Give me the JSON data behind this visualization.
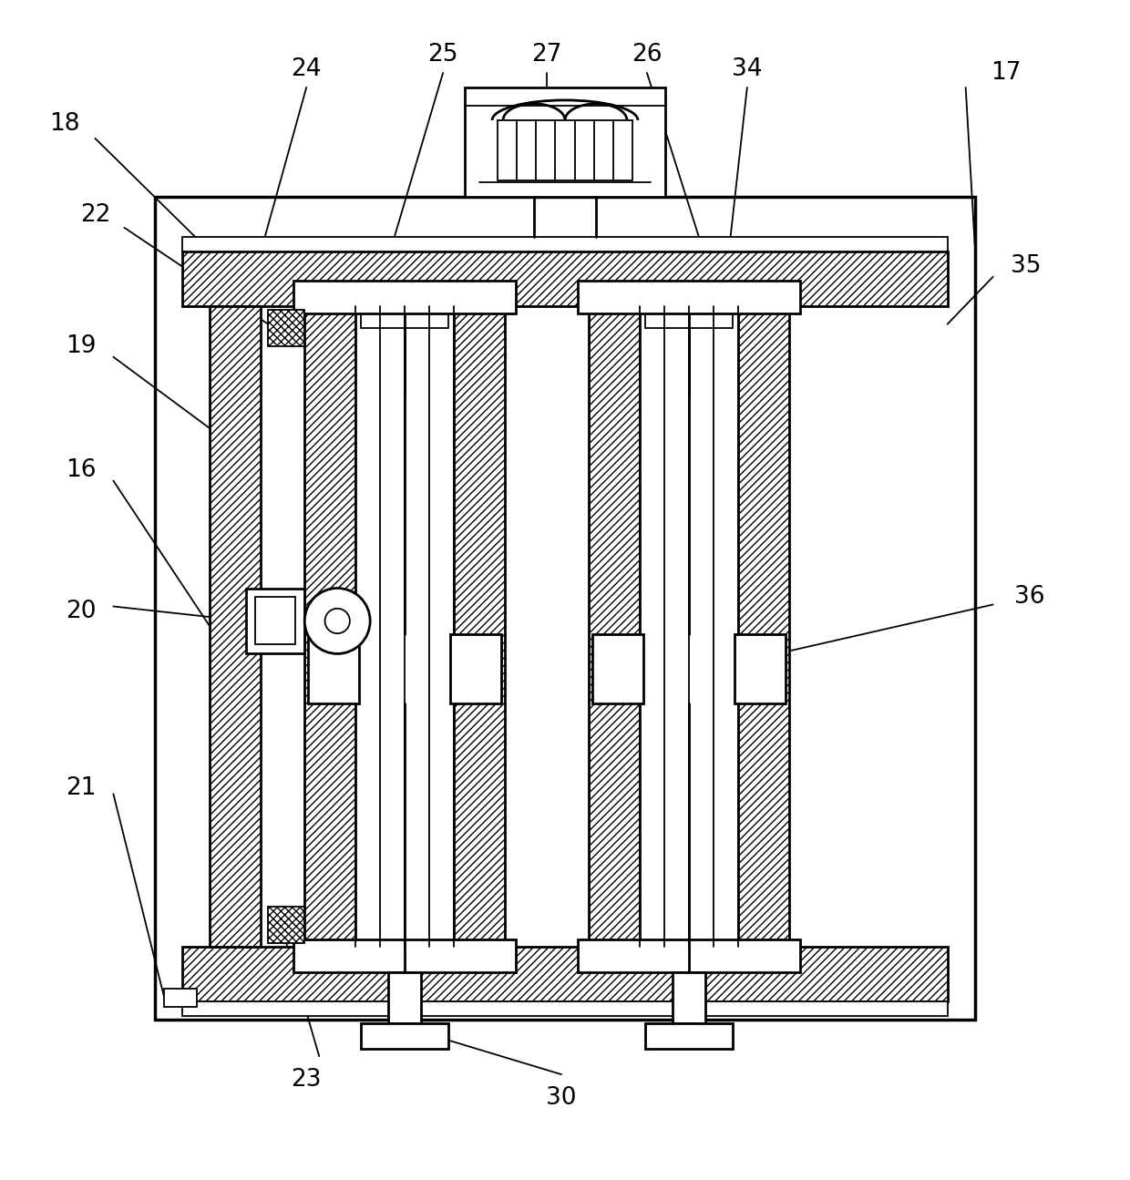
{
  "bg_color": "#ffffff",
  "line_color": "#000000",
  "fig_width": 12.4,
  "fig_height": 12.95,
  "lw_main": 2.0,
  "lw_thick": 2.5,
  "lw_thin": 1.3,
  "fontsize": 19
}
